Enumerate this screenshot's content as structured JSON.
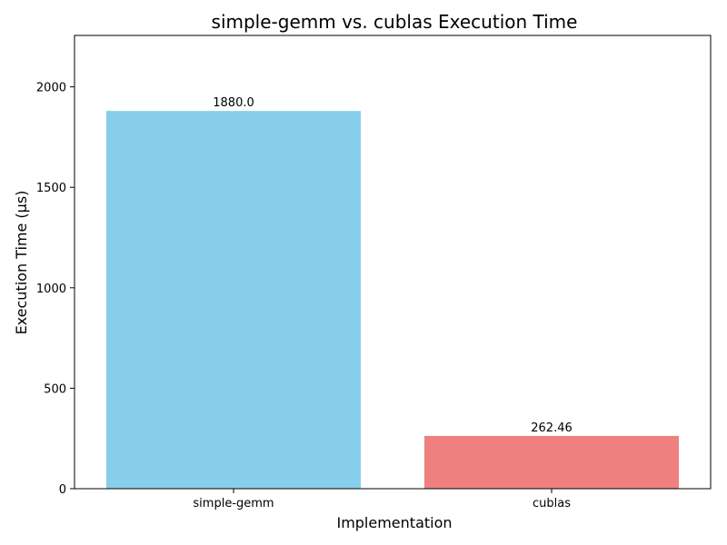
{
  "chart_data": {
    "type": "bar",
    "title": "simple-gemm vs. cublas Execution Time",
    "xlabel": "Implementation",
    "ylabel": "Execution Time (µs)",
    "categories": [
      "simple-gemm",
      "cublas"
    ],
    "values": [
      1880.0,
      262.46
    ],
    "value_labels": [
      "1880.0",
      "262.46"
    ],
    "bar_colors": [
      "#87ceeb",
      "#f08080"
    ],
    "ylim": [
      0,
      2256
    ],
    "yticks": [
      0,
      500,
      1000,
      1500,
      2000
    ],
    "ytick_labels": [
      "0",
      "500",
      "1000",
      "1500",
      "2000"
    ],
    "grid": false,
    "legend": "none"
  }
}
